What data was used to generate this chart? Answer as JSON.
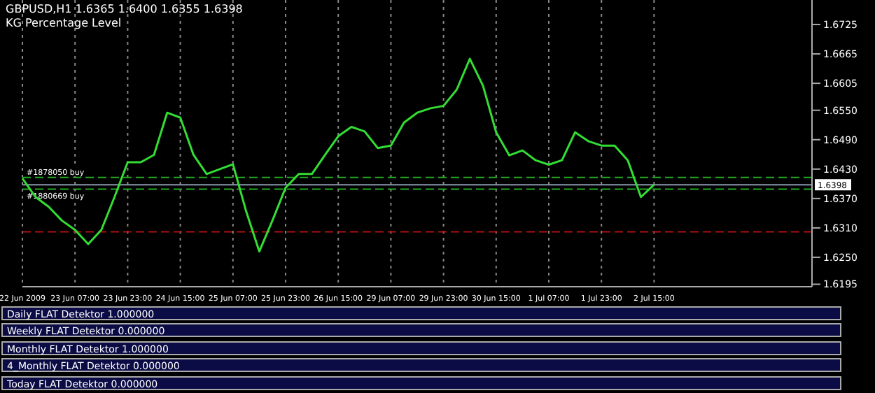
{
  "chart_data": {
    "type": "line",
    "title": "GBPUSD,H1  1.6365 1.6400 1.6355 1.6398",
    "subtitle": "KG Percentage Level",
    "categories": [
      "22 Jun 2009",
      null,
      null,
      null,
      "23 Jun 07:00",
      null,
      null,
      null,
      "23 Jun 23:00",
      null,
      null,
      null,
      "24 Jun 15:00",
      null,
      null,
      null,
      "25 Jun 07:00",
      null,
      null,
      null,
      "25 Jun 23:00",
      null,
      null,
      null,
      "26 Jun 15:00",
      null,
      null,
      null,
      "29 Jun 07:00",
      null,
      null,
      null,
      "29 Jun 23:00",
      null,
      null,
      null,
      "30 Jun 15:00",
      null,
      null,
      null,
      "1 Jul 07:00",
      null,
      null,
      null,
      "1 Jul 23:00",
      null,
      null,
      null,
      "2 Jul 15:00",
      null,
      null,
      null,
      null,
      null,
      null,
      null,
      null,
      null,
      null,
      null,
      null
    ],
    "series": [
      {
        "color": "#33dd33",
        "values": [
          1.6411,
          1.6373,
          1.6353,
          1.6325,
          1.6306,
          1.6277,
          1.6306,
          1.6373,
          1.6444,
          1.6444,
          1.6459,
          1.6545,
          1.6535,
          1.6459,
          1.642,
          1.643,
          1.644,
          1.6344,
          1.6262,
          1.6325,
          1.6392,
          1.642,
          1.642,
          1.6459,
          1.6497,
          1.6516,
          1.6507,
          1.6473,
          1.6478,
          1.6525,
          1.6545,
          1.6554,
          1.6559,
          1.6592,
          1.6655,
          1.66,
          1.6505,
          1.6458,
          1.6468,
          1.6448,
          1.6439,
          1.6448,
          1.6505,
          1.6487,
          1.6478,
          1.6478,
          1.6448,
          1.6373,
          1.6398,
          null,
          null,
          null,
          null,
          null,
          null,
          null,
          null,
          null,
          null,
          null,
          null
        ]
      }
    ],
    "ylim": [
      1.619,
      1.6775
    ],
    "yticks": [
      {
        "value": 1.6195,
        "label": "1.6195"
      },
      {
        "value": 1.625,
        "label": "1.6250"
      },
      {
        "value": 1.631,
        "label": "1.6310"
      },
      {
        "value": 1.637,
        "label": "1.6370"
      },
      {
        "value": 1.643,
        "label": "1.6430"
      },
      {
        "value": 1.649,
        "label": "1.6490"
      },
      {
        "value": 1.655,
        "label": "1.6550"
      },
      {
        "value": 1.6605,
        "label": "1.6605"
      },
      {
        "value": 1.6665,
        "label": "1.6665"
      },
      {
        "value": 1.6725,
        "label": "1.6725"
      }
    ],
    "ref_lines": [
      {
        "axis": "y",
        "value": 1.6413,
        "label": "#1878050 buy",
        "color": "#22aa22",
        "line_style": "dashed"
      },
      {
        "axis": "y",
        "value": 1.6389,
        "label": "#1880669 buy",
        "color": "#22aa22",
        "line_style": "dashed"
      },
      {
        "axis": "y",
        "value": 1.6398,
        "label": "1.6398",
        "color": "#8899aa",
        "line_style": "solid"
      },
      {
        "axis": "y",
        "value": 1.6302,
        "label": null,
        "color": "#aa1111",
        "line_style": "dashed"
      }
    ],
    "annotations": [
      "Daily FLAT Detektor 1.000000",
      "Weekly FLAT Detektor 0.000000",
      "Monthly FLAT Detektor 1.000000",
      "4_Monthly FLAT Detektor 0.000000",
      "Today FLAT Detektor 0.000000"
    ],
    "grid": "x",
    "marker": "none",
    "line_style": "solid"
  }
}
